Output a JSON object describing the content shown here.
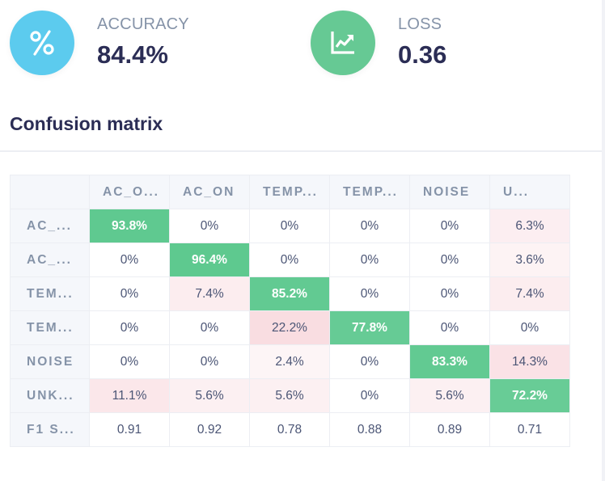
{
  "stats": {
    "accuracy": {
      "label": "ACCURACY",
      "value": "84.4%",
      "icon": "percent-icon",
      "color": "#5ccbee"
    },
    "loss": {
      "label": "LOSS",
      "value": "0.36",
      "icon": "line-chart-icon",
      "color": "#66c994"
    }
  },
  "section_title": "Confusion matrix",
  "matrix": {
    "columns": [
      "AC_O...",
      "AC_ON",
      "TEMP...",
      "TEMP...",
      "NOISE",
      "U..."
    ],
    "rows": [
      {
        "label": "AC_...",
        "cells": [
          "93.8%",
          "0%",
          "0%",
          "0%",
          "0%",
          "6.3%"
        ],
        "pct": [
          93.8,
          0,
          0,
          0,
          0,
          6.3
        ]
      },
      {
        "label": "AC_...",
        "cells": [
          "0%",
          "96.4%",
          "0%",
          "0%",
          "0%",
          "3.6%"
        ],
        "pct": [
          0,
          96.4,
          0,
          0,
          0,
          3.6
        ]
      },
      {
        "label": "TEM...",
        "cells": [
          "0%",
          "7.4%",
          "85.2%",
          "0%",
          "0%",
          "7.4%"
        ],
        "pct": [
          0,
          7.4,
          85.2,
          0,
          0,
          7.4
        ]
      },
      {
        "label": "TEM...",
        "cells": [
          "0%",
          "0%",
          "22.2%",
          "77.8%",
          "0%",
          "0%"
        ],
        "pct": [
          0,
          0,
          22.2,
          77.8,
          0,
          0
        ]
      },
      {
        "label": "NOISE",
        "cells": [
          "0%",
          "0%",
          "2.4%",
          "0%",
          "83.3%",
          "14.3%"
        ],
        "pct": [
          0,
          0,
          2.4,
          0,
          83.3,
          14.3
        ]
      },
      {
        "label": "UNK...",
        "cells": [
          "11.1%",
          "5.6%",
          "5.6%",
          "0%",
          "5.6%",
          "72.2%"
        ],
        "pct": [
          11.1,
          5.6,
          5.6,
          0,
          5.6,
          72.2
        ]
      }
    ],
    "f1_row": {
      "label": "F1 S...",
      "cells": [
        "0.91",
        "0.92",
        "0.78",
        "0.88",
        "0.89",
        "0.71"
      ]
    },
    "colors": {
      "correct": "#5cc88e",
      "error": "#f5c2ca"
    }
  }
}
